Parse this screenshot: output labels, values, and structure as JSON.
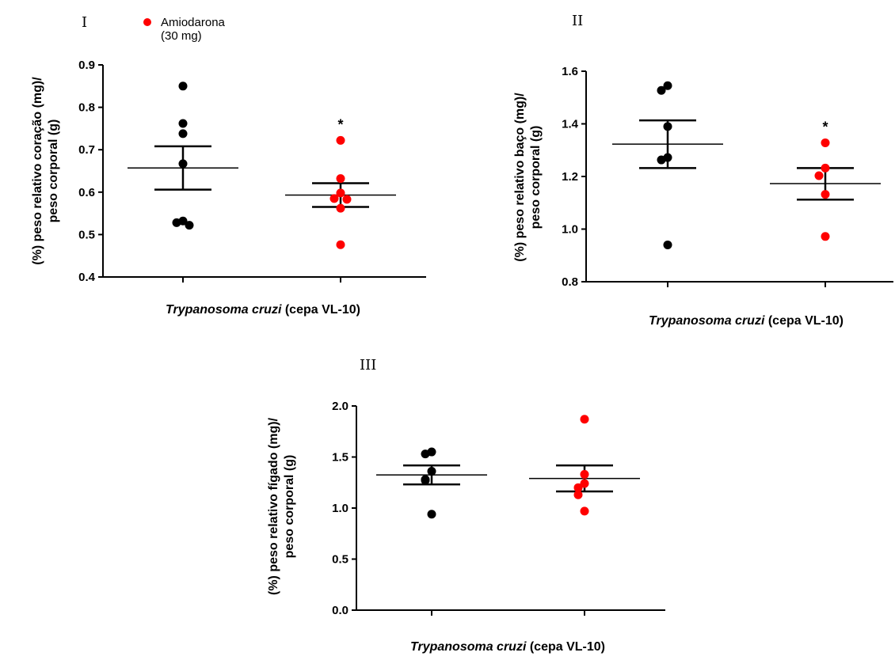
{
  "legend": {
    "label_line1": "Amiodarona",
    "label_line2": "(30 mg)",
    "color": "#ff0000"
  },
  "colors": {
    "control": "#000000",
    "treated": "#ff0000",
    "axis": "#000000"
  },
  "chart_data": [
    {
      "type": "scatter",
      "panel_label": "I",
      "ylabel_line1": "(%) peso relativo coração (mg)/",
      "ylabel_line2": "peso corporal (g)",
      "xlabel_italic": "Trypanosoma cruzi",
      "xlabel_rest": " (cepa VL-10)",
      "ylim": [
        0.4,
        0.9
      ],
      "yticks": [
        0.4,
        0.5,
        0.6,
        0.7,
        0.8,
        0.9
      ],
      "ytick_labels": [
        "0.4",
        "0.5",
        "0.6",
        "0.7",
        "0.8",
        "0.9"
      ],
      "groups": [
        {
          "name": "",
          "color": "#000000",
          "points": [
            0.85,
            0.762,
            0.738,
            0.667,
            0.532,
            0.528,
            0.522
          ],
          "mean": 0.657,
          "sem_low": 0.606,
          "sem_high": 0.708,
          "significance": ""
        },
        {
          "name": "Amiodarona (30 mg)",
          "color": "#ff0000",
          "points": [
            0.722,
            0.632,
            0.598,
            0.585,
            0.583,
            0.562,
            0.476
          ],
          "mean": 0.593,
          "sem_low": 0.565,
          "sem_high": 0.621,
          "significance": "*"
        }
      ]
    },
    {
      "type": "scatter",
      "panel_label": "II",
      "ylabel_line1": "(%) peso relativo baço (mg)/",
      "ylabel_line2": "peso corporal (g)",
      "xlabel_italic": "Trypanosoma cruzi",
      "xlabel_rest": " (cepa VL-10)",
      "ylim": [
        0.8,
        1.6
      ],
      "yticks": [
        0.8,
        1.0,
        1.2,
        1.4,
        1.6
      ],
      "ytick_labels": [
        "0.8",
        "1.0",
        "1.2",
        "1.4",
        "1.6"
      ],
      "groups": [
        {
          "name": "",
          "color": "#000000",
          "points": [
            1.545,
            1.527,
            1.39,
            1.272,
            1.263,
            0.94
          ],
          "mean": 1.323,
          "sem_low": 1.232,
          "sem_high": 1.413,
          "significance": ""
        },
        {
          "name": "Amiodarona (30 mg)",
          "color": "#ff0000",
          "points": [
            1.328,
            1.232,
            1.203,
            1.132,
            0.972
          ],
          "mean": 1.173,
          "sem_low": 1.112,
          "sem_high": 1.232,
          "significance": "*"
        }
      ]
    },
    {
      "type": "scatter",
      "panel_label": "III",
      "ylabel_line1": "(%) peso relativo fígado (mg)/",
      "ylabel_line2": "peso corporal (g)",
      "xlabel_italic": "Trypanosoma cruzi",
      "xlabel_rest": " (cepa VL-10)",
      "ylim": [
        0.0,
        2.0
      ],
      "yticks": [
        0.0,
        0.5,
        1.0,
        1.5,
        2.0
      ],
      "ytick_labels": [
        "0.0",
        "0.5",
        "1.0",
        "1.5",
        "2.0"
      ],
      "groups": [
        {
          "name": "",
          "color": "#000000",
          "points": [
            1.55,
            1.53,
            1.36,
            1.28,
            1.27,
            0.94
          ],
          "mean": 1.325,
          "sem_low": 1.232,
          "sem_high": 1.418,
          "significance": ""
        },
        {
          "name": "Amiodarona (30 mg)",
          "color": "#ff0000",
          "points": [
            1.87,
            1.33,
            1.24,
            1.2,
            1.13,
            0.97
          ],
          "mean": 1.29,
          "sem_low": 1.163,
          "sem_high": 1.418,
          "significance": ""
        }
      ]
    }
  ]
}
